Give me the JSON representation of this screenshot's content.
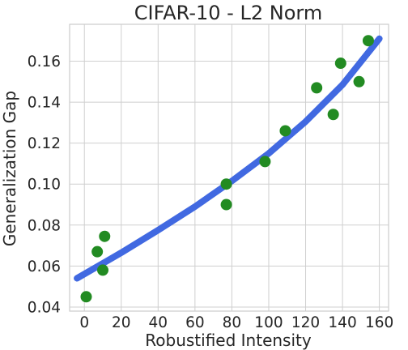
{
  "chart_data": {
    "type": "scatter",
    "title": "CIFAR-10 - L2 Norm",
    "xlabel": "Robustified Intensity",
    "ylabel": "Generalization Gap",
    "xlim": [
      -8,
      165
    ],
    "ylim": [
      0.038,
      0.178
    ],
    "xticks": [
      0,
      20,
      40,
      60,
      80,
      100,
      120,
      140,
      160
    ],
    "yticks": [
      0.04,
      0.06,
      0.08,
      0.1,
      0.12,
      0.14,
      0.16
    ],
    "ytick_labels": [
      "0.04",
      "0.06",
      "0.08",
      "0.10",
      "0.12",
      "0.14",
      "0.16"
    ],
    "grid": true,
    "series": [
      {
        "type": "scatter",
        "color": "#228b22",
        "points": [
          [
            1,
            0.045
          ],
          [
            7,
            0.067
          ],
          [
            10,
            0.058
          ],
          [
            11,
            0.0745
          ],
          [
            77,
            0.1
          ],
          [
            77,
            0.09
          ],
          [
            98,
            0.111
          ],
          [
            109,
            0.126
          ],
          [
            126,
            0.147
          ],
          [
            135,
            0.134
          ],
          [
            139,
            0.159
          ],
          [
            149,
            0.15
          ],
          [
            154,
            0.17
          ]
        ]
      },
      {
        "type": "line",
        "color": "#4169e1",
        "points": [
          [
            -4,
            0.054
          ],
          [
            20,
            0.0665
          ],
          [
            40,
            0.0775
          ],
          [
            60,
            0.089
          ],
          [
            80,
            0.1015
          ],
          [
            100,
            0.115
          ],
          [
            120,
            0.1305
          ],
          [
            140,
            0.1485
          ],
          [
            160,
            0.171
          ]
        ]
      }
    ]
  }
}
